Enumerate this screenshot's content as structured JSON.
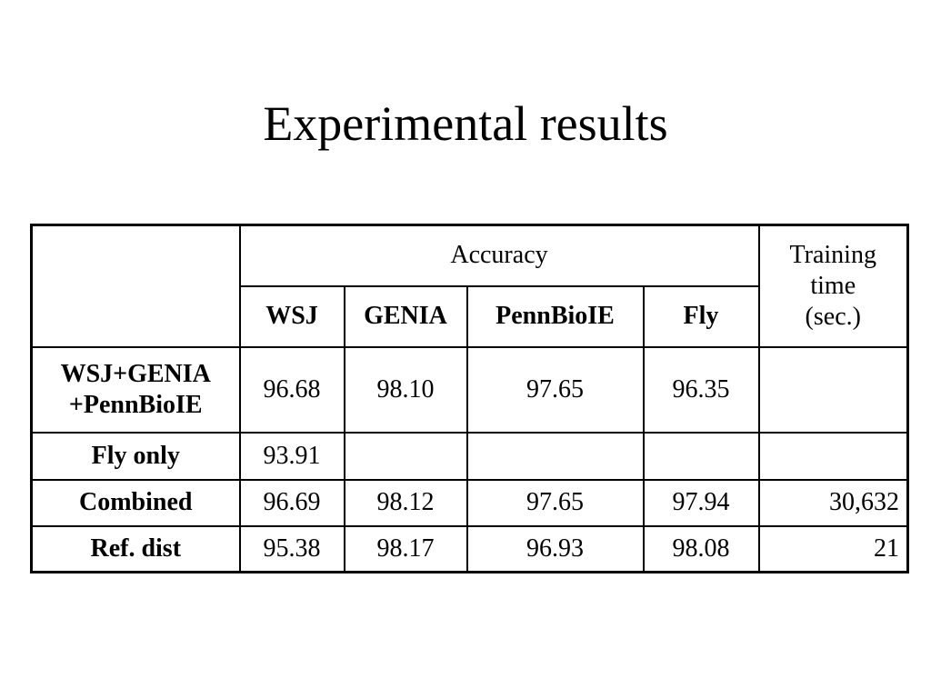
{
  "title": "Experimental results",
  "table": {
    "group_header": "Accuracy",
    "time_header": "Training\ntime\n(sec.)",
    "columns": [
      "WSJ",
      "GENIA",
      "PennBioIE",
      "Fly"
    ],
    "rows": [
      {
        "label": "WSJ+GENIA\n+PennBioIE",
        "accuracy": [
          "96.68",
          "98.10",
          "97.65",
          "96.35"
        ]
      },
      {
        "label": "Fly only",
        "accuracy": [
          "93.91"
        ]
      },
      {
        "label": "Combined",
        "accuracy": [
          "96.69",
          "98.12",
          "97.65",
          "97.94"
        ],
        "time": "30,632"
      },
      {
        "label": "Ref. dist",
        "accuracy": [
          "95.38",
          "98.17",
          "96.93",
          "98.08"
        ],
        "time": "21"
      }
    ]
  }
}
